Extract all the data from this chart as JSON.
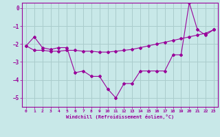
{
  "x": [
    0,
    1,
    2,
    3,
    4,
    5,
    6,
    7,
    8,
    9,
    10,
    11,
    12,
    13,
    14,
    15,
    16,
    17,
    18,
    19,
    20,
    21,
    22,
    23
  ],
  "y_actual": [
    -2.1,
    -1.6,
    -2.2,
    -2.3,
    -2.2,
    -2.2,
    -3.6,
    -3.5,
    -3.8,
    -3.8,
    -4.5,
    -5.0,
    -4.2,
    -4.2,
    -3.5,
    -3.5,
    -3.5,
    -3.5,
    -2.6,
    -2.6,
    0.3,
    -1.2,
    -1.5,
    -1.2
  ],
  "y_trend": [
    -2.1,
    -2.35,
    -2.35,
    -2.4,
    -2.4,
    -2.35,
    -2.35,
    -2.4,
    -2.4,
    -2.45,
    -2.45,
    -2.4,
    -2.35,
    -2.3,
    -2.2,
    -2.1,
    -2.0,
    -1.9,
    -1.8,
    -1.7,
    -1.6,
    -1.5,
    -1.4,
    -1.2
  ],
  "line_color": "#990099",
  "bg_color": "#c8e8e8",
  "grid_color": "#aacccc",
  "xlabel": "Windchill (Refroidissement éolien,°C)",
  "ylim": [
    -5.5,
    0.3
  ],
  "xlim": [
    -0.5,
    23.5
  ],
  "yticks": [
    0,
    -1,
    -2,
    -3,
    -4,
    -5
  ],
  "xticks": [
    0,
    1,
    2,
    3,
    4,
    5,
    6,
    7,
    8,
    9,
    10,
    11,
    12,
    13,
    14,
    15,
    16,
    17,
    18,
    19,
    20,
    21,
    22,
    23
  ]
}
